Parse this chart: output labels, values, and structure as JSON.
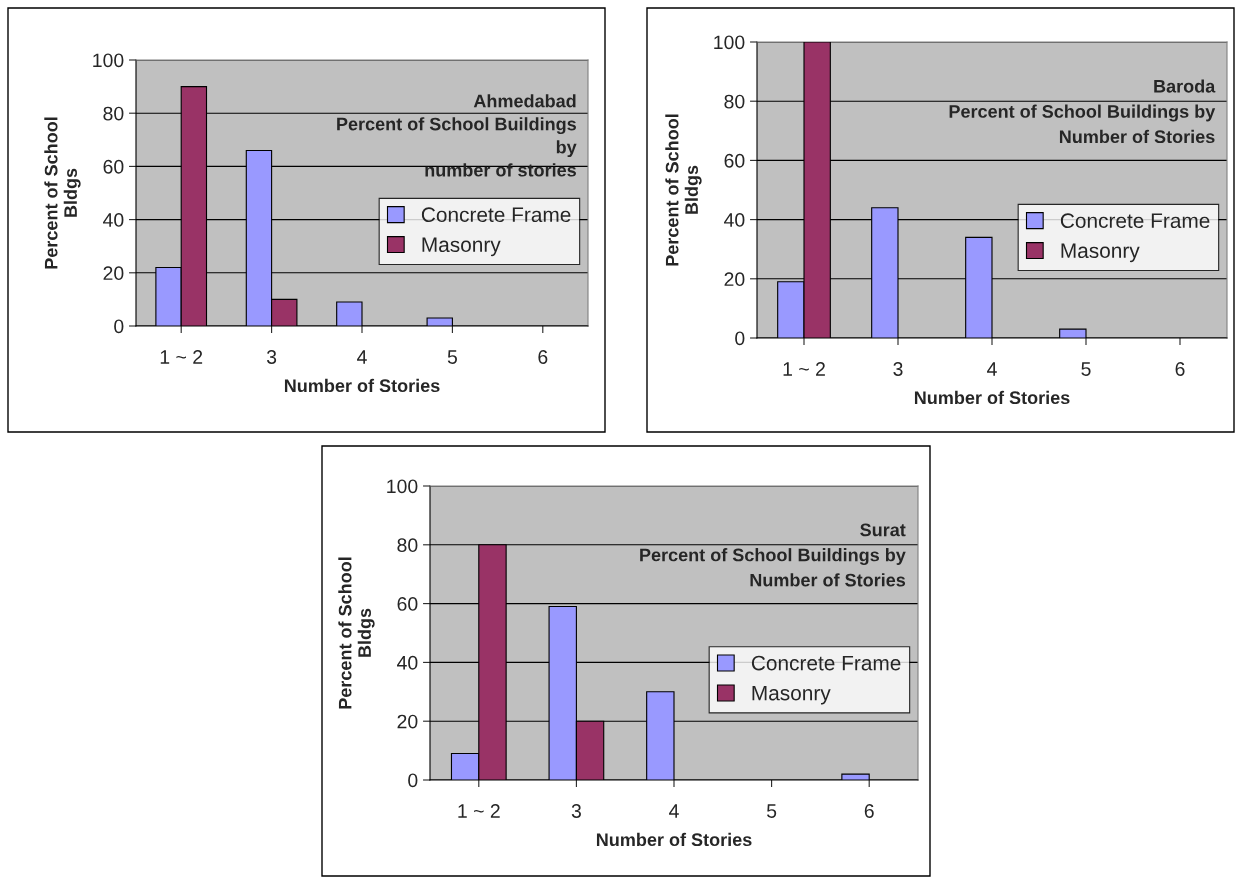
{
  "chart_data": [
    {
      "type": "bar",
      "title": "Ahmedabad\nPercent of School Buildings\nby\nnumber of stories",
      "xlabel": "Number of Stories",
      "ylabel": "Percent of School\nBldgs",
      "categories": [
        "1 ~ 2",
        "3",
        "4",
        "5",
        "6"
      ],
      "series": [
        {
          "name": "Concrete Frame",
          "color": "#9999ff",
          "values": [
            22,
            66,
            9,
            3,
            null
          ]
        },
        {
          "name": "Masonry",
          "color": "#993366",
          "values": [
            90,
            10,
            null,
            null,
            null
          ]
        }
      ],
      "ylim": [
        0,
        100
      ],
      "yticks": [
        0,
        20,
        40,
        60,
        80,
        100
      ],
      "grid": "y",
      "legend": "right"
    },
    {
      "type": "bar",
      "title": "Baroda\nPercent of School Buildings by\nNumber of Stories",
      "xlabel": "Number of Stories",
      "ylabel": "Percent of School\nBldgs",
      "categories": [
        "1 ~ 2",
        "3",
        "4",
        "5",
        "6"
      ],
      "series": [
        {
          "name": "Concrete Frame",
          "color": "#9999ff",
          "values": [
            19,
            44,
            34,
            3,
            null
          ]
        },
        {
          "name": "Masonry",
          "color": "#993366",
          "values": [
            100,
            null,
            null,
            null,
            null
          ]
        }
      ],
      "ylim": [
        0,
        100
      ],
      "yticks": [
        0,
        20,
        40,
        60,
        80,
        100
      ],
      "grid": "y",
      "legend": "right"
    },
    {
      "type": "bar",
      "title": "Surat\nPercent of School Buildings by\nNumber of Stories",
      "xlabel": "Number of Stories",
      "ylabel": "Percent of School\nBldgs",
      "categories": [
        "1 ~ 2",
        "3",
        "4",
        "5",
        "6"
      ],
      "series": [
        {
          "name": "Concrete Frame",
          "color": "#9999ff",
          "values": [
            9,
            59,
            30,
            null,
            2
          ]
        },
        {
          "name": "Masonry",
          "color": "#993366",
          "values": [
            80,
            20,
            null,
            null,
            null
          ]
        }
      ],
      "ylim": [
        0,
        100
      ],
      "yticks": [
        0,
        20,
        40,
        60,
        80,
        100
      ],
      "grid": "y",
      "legend": "right"
    }
  ]
}
